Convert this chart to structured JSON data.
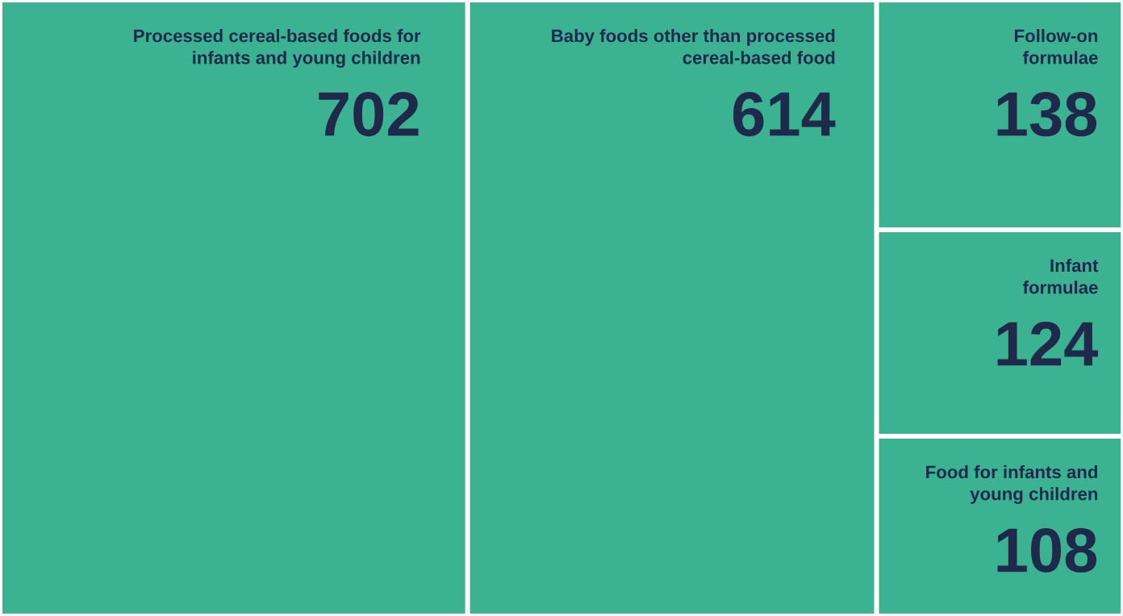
{
  "chart_data": {
    "type": "other",
    "categories": [
      "Processed cereal-based foods for\ninfants and young children",
      "Baby foods other than processed\ncereal-based food",
      "Follow-on\nformulae",
      "Infant\nformulae",
      "Food for infants and\nyoung children"
    ],
    "values": [
      702,
      614,
      138,
      124,
      108
    ],
    "color": "#3bb292",
    "data_labels": true
  }
}
